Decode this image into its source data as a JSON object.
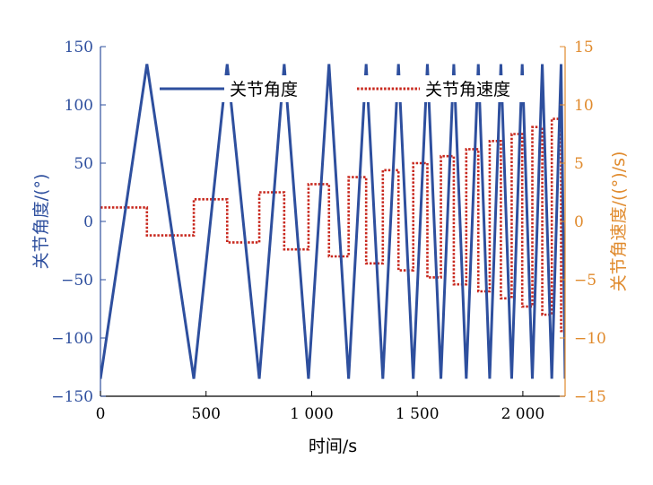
{
  "chart_data": {
    "type": "line",
    "title": "",
    "xlabel": "时间/s",
    "ylabel_left": "关节角度/(°)",
    "ylabel_right": "关节角速度/((°)/s)",
    "xlim": [
      0,
      2200
    ],
    "ylim_left": [
      -150,
      150
    ],
    "ylim_right": [
      -15,
      15
    ],
    "x_ticks": [
      0,
      500,
      1000,
      1500,
      2000
    ],
    "x_tick_labels": [
      "0",
      "500",
      "1 000",
      "1 500",
      "2 000"
    ],
    "y_left_ticks": [
      150,
      100,
      50,
      0,
      -50,
      -100,
      -150
    ],
    "y_left_tick_labels": [
      "150",
      "100",
      "50",
      "0",
      "−50",
      "−100",
      "−150"
    ],
    "y_right_ticks": [
      15,
      10,
      5,
      0,
      -5,
      -10,
      -15
    ],
    "y_right_tick_labels": [
      "15",
      "10",
      "5",
      "0",
      "−5",
      "−10",
      "−15"
    ],
    "grid": false,
    "legend_position": "top",
    "colors": {
      "angle": "#2e4f9e",
      "velocity": "#c8281e",
      "right_axis": "#e08a2c",
      "axis": "#000000"
    },
    "series": [
      {
        "name": "关节角度",
        "axis": "left",
        "style": "solid",
        "peak_amplitude": 135,
        "reversal_times": [
          0,
          220,
          442,
          600,
          752,
          870,
          985,
          1082,
          1175,
          1258,
          1337,
          1411,
          1481,
          1548,
          1612,
          1673,
          1732,
          1789,
          1843,
          1896,
          1947,
          1997,
          2045,
          2092,
          2137,
          2181,
          2200
        ],
        "x": [
          0,
          220,
          442,
          600,
          752,
          870,
          985,
          1082,
          1175,
          1258,
          1337,
          1411,
          1481,
          1548,
          1612,
          1673,
          1732,
          1789,
          1843,
          1896,
          1947,
          1997,
          2045,
          2092,
          2137,
          2181,
          2200
        ],
        "y": [
          -135,
          135,
          -135,
          135,
          -135,
          135,
          -135,
          135,
          -135,
          135,
          -135,
          135,
          -135,
          135,
          -135,
          135,
          -135,
          135,
          -135,
          135,
          -135,
          135,
          -135,
          135,
          -135,
          135,
          -135
        ]
      },
      {
        "name": "关节角速度",
        "axis": "right",
        "style": "dotted",
        "segments": [
          {
            "x0": 0,
            "x1": 220,
            "y": 1.2
          },
          {
            "x0": 220,
            "x1": 442,
            "y": -1.2
          },
          {
            "x0": 442,
            "x1": 600,
            "y": 1.9
          },
          {
            "x0": 600,
            "x1": 752,
            "y": -1.8
          },
          {
            "x0": 752,
            "x1": 870,
            "y": 2.5
          },
          {
            "x0": 870,
            "x1": 985,
            "y": -2.4
          },
          {
            "x0": 985,
            "x1": 1082,
            "y": 3.2
          },
          {
            "x0": 1082,
            "x1": 1175,
            "y": -3.0
          },
          {
            "x0": 1175,
            "x1": 1258,
            "y": 3.8
          },
          {
            "x0": 1258,
            "x1": 1337,
            "y": -3.6
          },
          {
            "x0": 1337,
            "x1": 1411,
            "y": 4.4
          },
          {
            "x0": 1411,
            "x1": 1481,
            "y": -4.2
          },
          {
            "x0": 1481,
            "x1": 1548,
            "y": 5.0
          },
          {
            "x0": 1548,
            "x1": 1612,
            "y": -4.8
          },
          {
            "x0": 1612,
            "x1": 1673,
            "y": 5.6
          },
          {
            "x0": 1673,
            "x1": 1732,
            "y": -5.4
          },
          {
            "x0": 1732,
            "x1": 1789,
            "y": 6.2
          },
          {
            "x0": 1789,
            "x1": 1843,
            "y": -6.0
          },
          {
            "x0": 1843,
            "x1": 1896,
            "y": 6.9
          },
          {
            "x0": 1896,
            "x1": 1947,
            "y": -6.6
          },
          {
            "x0": 1947,
            "x1": 1997,
            "y": 7.5
          },
          {
            "x0": 1997,
            "x1": 2045,
            "y": -7.3
          },
          {
            "x0": 2045,
            "x1": 2092,
            "y": 8.1
          },
          {
            "x0": 2092,
            "x1": 2137,
            "y": -8.0
          },
          {
            "x0": 2137,
            "x1": 2181,
            "y": 8.8
          },
          {
            "x0": 2181,
            "x1": 2200,
            "y": -9.4
          }
        ]
      }
    ]
  }
}
